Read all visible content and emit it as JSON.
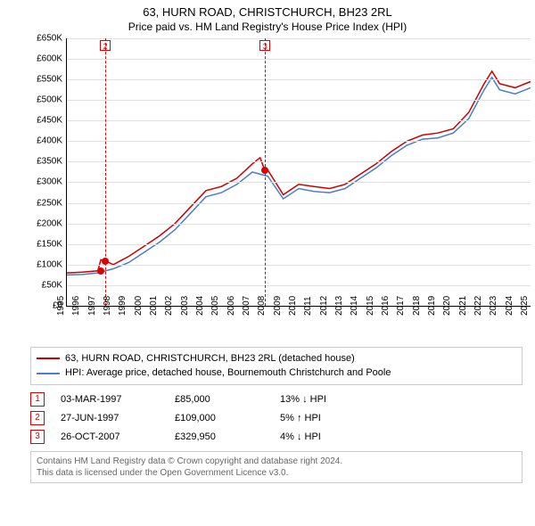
{
  "title_line1": "63, HURN ROAD, CHRISTCHURCH, BH23 2RL",
  "title_line2": "Price paid vs. HM Land Registry's House Price Index (HPI)",
  "chart": {
    "type": "line",
    "background_color": "#ffffff",
    "grid_color": "#e0e0e0",
    "axis_color": "#000000",
    "y": {
      "min": 0,
      "max": 650000,
      "step": 50000,
      "tick_labels": [
        "£0",
        "£50K",
        "£100K",
        "£150K",
        "£200K",
        "£250K",
        "£300K",
        "£350K",
        "£400K",
        "£450K",
        "£500K",
        "£550K",
        "£600K",
        "£650K"
      ],
      "label_fontsize": 10
    },
    "x": {
      "min": 1995,
      "max": 2025,
      "step": 1,
      "tick_labels": [
        "1995",
        "1996",
        "1997",
        "1998",
        "1999",
        "2000",
        "2001",
        "2002",
        "2003",
        "2004",
        "2005",
        "2006",
        "2007",
        "2008",
        "2009",
        "2010",
        "2011",
        "2012",
        "2013",
        "2014",
        "2015",
        "2016",
        "2017",
        "2018",
        "2019",
        "2020",
        "2021",
        "2022",
        "2023",
        "2024",
        "2025"
      ],
      "label_fontsize": 10,
      "rotation": -90
    },
    "series": [
      {
        "name": "63, HURN ROAD, CHRISTCHURCH, BH23 2RL (detached house)",
        "color": "#cc0000",
        "line_width": 1.5,
        "points": [
          [
            1995,
            80000
          ],
          [
            1996,
            82000
          ],
          [
            1997,
            85000
          ],
          [
            1997.2,
            112000
          ],
          [
            1997.5,
            109000
          ],
          [
            1998,
            100000
          ],
          [
            1998.5,
            110000
          ],
          [
            1999,
            120000
          ],
          [
            2000,
            145000
          ],
          [
            2001,
            170000
          ],
          [
            2002,
            200000
          ],
          [
            2003,
            240000
          ],
          [
            2004,
            280000
          ],
          [
            2005,
            290000
          ],
          [
            2006,
            310000
          ],
          [
            2007,
            345000
          ],
          [
            2007.5,
            360000
          ],
          [
            2007.8,
            329950
          ],
          [
            2008,
            330000
          ],
          [
            2009,
            270000
          ],
          [
            2010,
            295000
          ],
          [
            2011,
            290000
          ],
          [
            2012,
            285000
          ],
          [
            2013,
            295000
          ],
          [
            2014,
            320000
          ],
          [
            2015,
            345000
          ],
          [
            2016,
            375000
          ],
          [
            2017,
            400000
          ],
          [
            2018,
            415000
          ],
          [
            2019,
            420000
          ],
          [
            2020,
            430000
          ],
          [
            2021,
            470000
          ],
          [
            2022,
            540000
          ],
          [
            2022.5,
            570000
          ],
          [
            2023,
            540000
          ],
          [
            2024,
            530000
          ],
          [
            2025,
            545000
          ]
        ]
      },
      {
        "name": "HPI: Average price, detached house, Bournemouth Christchurch and Poole",
        "color": "#4a7ec8",
        "line_width": 1.5,
        "points": [
          [
            1995,
            75000
          ],
          [
            1996,
            76000
          ],
          [
            1997,
            80000
          ],
          [
            1998,
            90000
          ],
          [
            1999,
            105000
          ],
          [
            2000,
            130000
          ],
          [
            2001,
            155000
          ],
          [
            2002,
            185000
          ],
          [
            2003,
            225000
          ],
          [
            2004,
            265000
          ],
          [
            2005,
            275000
          ],
          [
            2006,
            295000
          ],
          [
            2007,
            325000
          ],
          [
            2008,
            315000
          ],
          [
            2009,
            260000
          ],
          [
            2010,
            285000
          ],
          [
            2011,
            278000
          ],
          [
            2012,
            275000
          ],
          [
            2013,
            285000
          ],
          [
            2014,
            310000
          ],
          [
            2015,
            335000
          ],
          [
            2016,
            365000
          ],
          [
            2017,
            390000
          ],
          [
            2018,
            405000
          ],
          [
            2019,
            408000
          ],
          [
            2020,
            420000
          ],
          [
            2021,
            455000
          ],
          [
            2022,
            525000
          ],
          [
            2022.5,
            555000
          ],
          [
            2023,
            525000
          ],
          [
            2024,
            515000
          ],
          [
            2025,
            530000
          ]
        ]
      }
    ],
    "markers": [
      {
        "id": "1",
        "year": 1997.17,
        "price": 85000,
        "dot": true,
        "hidden_box": true
      },
      {
        "id": "2",
        "year": 1997.49,
        "price": 109000,
        "dash_from": 0,
        "dash_to": 300
      },
      {
        "id": "3",
        "year": 2007.82,
        "price": 329950,
        "dash_from": 0,
        "dash_to": 300
      }
    ]
  },
  "legend": {
    "items": [
      {
        "color": "#cc0000",
        "label": "63, HURN ROAD, CHRISTCHURCH, BH23 2RL (detached house)"
      },
      {
        "color": "#4a7ec8",
        "label": "HPI: Average price, detached house, Bournemouth Christchurch and Poole"
      }
    ]
  },
  "events": [
    {
      "id": "1",
      "date": "03-MAR-1997",
      "price": "£85,000",
      "delta": "13% ↓ HPI"
    },
    {
      "id": "2",
      "date": "27-JUN-1997",
      "price": "£109,000",
      "delta": "5% ↑ HPI"
    },
    {
      "id": "3",
      "date": "26-OCT-2007",
      "price": "£329,950",
      "delta": "4% ↓ HPI"
    }
  ],
  "footer_line1": "Contains HM Land Registry data © Crown copyright and database right 2024.",
  "footer_line2": "This data is licensed under the Open Government Licence v3.0."
}
